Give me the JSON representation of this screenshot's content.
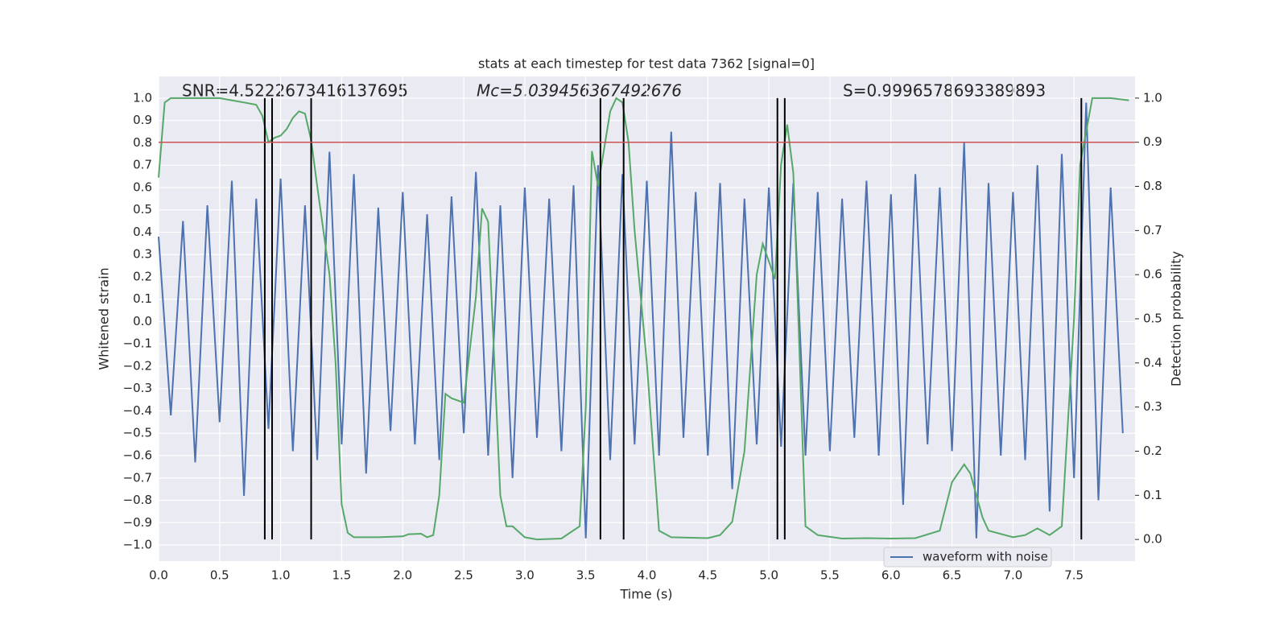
{
  "chart_data": {
    "type": "line",
    "title": "stats at each timestep for test data 7362 [signal=0]",
    "xlabel": "Time (s)",
    "ylabel": "Whitened strain",
    "y2label": "Detection probability",
    "annotations": [
      "SNR=4.5222673416137695",
      "Mc=5.039456367492676",
      "S=0.9996578693389893"
    ],
    "xlim": [
      0,
      8.0
    ],
    "ylim": [
      -1.072,
      1.097
    ],
    "y2lim": [
      -0.049,
      1.049
    ],
    "grid": true,
    "legend": "lower right",
    "xticks": [
      {
        "value": 0,
        "label": "0.0"
      },
      {
        "value": 0.5,
        "label": "0.5"
      },
      {
        "value": 1,
        "label": "1.0"
      },
      {
        "value": 1.5,
        "label": "1.5"
      },
      {
        "value": 2,
        "label": "2.0"
      },
      {
        "value": 2.5,
        "label": "2.5"
      },
      {
        "value": 3,
        "label": "3.0"
      },
      {
        "value": 3.5,
        "label": "3.5"
      },
      {
        "value": 4,
        "label": "4.0"
      },
      {
        "value": 4.5,
        "label": "4.5"
      },
      {
        "value": 5,
        "label": "5.0"
      },
      {
        "value": 5.5,
        "label": "5.5"
      },
      {
        "value": 6,
        "label": "6.0"
      },
      {
        "value": 6.5,
        "label": "6.5"
      },
      {
        "value": 7,
        "label": "7.0"
      },
      {
        "value": 7.5,
        "label": "7.5"
      }
    ],
    "yticks": [
      {
        "value": -1,
        "label": "−1.0"
      },
      {
        "value": -0.9,
        "label": "−0.9"
      },
      {
        "value": -0.8,
        "label": "−0.8"
      },
      {
        "value": -0.7,
        "label": "−0.7"
      },
      {
        "value": -0.6,
        "label": "−0.6"
      },
      {
        "value": -0.5,
        "label": "−0.5"
      },
      {
        "value": -0.4,
        "label": "−0.4"
      },
      {
        "value": -0.3,
        "label": "−0.3"
      },
      {
        "value": -0.2,
        "label": "−0.2"
      },
      {
        "value": -0.1,
        "label": "−0.1"
      },
      {
        "value": 0,
        "label": "0.0"
      },
      {
        "value": 0.1,
        "label": "0.1"
      },
      {
        "value": 0.2,
        "label": "0.2"
      },
      {
        "value": 0.3,
        "label": "0.3"
      },
      {
        "value": 0.4,
        "label": "0.4"
      },
      {
        "value": 0.5,
        "label": "0.5"
      },
      {
        "value": 0.6,
        "label": "0.6"
      },
      {
        "value": 0.7,
        "label": "0.7"
      },
      {
        "value": 0.8,
        "label": "0.8"
      },
      {
        "value": 0.9,
        "label": "0.9"
      },
      {
        "value": 1,
        "label": "1.0"
      }
    ],
    "y2ticks": [
      {
        "value": 0,
        "label": "0.0"
      },
      {
        "value": 0.1,
        "label": "0.1"
      },
      {
        "value": 0.2,
        "label": "0.2"
      },
      {
        "value": 0.3,
        "label": "0.3"
      },
      {
        "value": 0.4,
        "label": "0.4"
      },
      {
        "value": 0.5,
        "label": "0.5"
      },
      {
        "value": 0.6,
        "label": "0.6"
      },
      {
        "value": 0.7,
        "label": "0.7"
      },
      {
        "value": 0.8,
        "label": "0.8"
      },
      {
        "value": 0.9,
        "label": "0.9"
      },
      {
        "value": 1,
        "label": "1.0"
      }
    ],
    "series": [
      {
        "name": "waveform with noise",
        "color": "#4c72b0",
        "x": [
          0,
          0.1,
          0.2,
          0.3,
          0.4,
          0.5,
          0.6,
          0.7,
          0.8,
          0.9,
          1,
          1.1,
          1.2,
          1.3,
          1.4,
          1.5,
          1.6,
          1.7,
          1.8,
          1.9,
          2,
          2.1,
          2.2,
          2.3,
          2.4,
          2.5,
          2.6,
          2.7,
          2.8,
          2.9,
          3,
          3.1,
          3.2,
          3.3,
          3.4,
          3.5,
          3.6,
          3.7,
          3.8,
          3.9,
          4,
          4.1,
          4.2,
          4.3,
          4.4,
          4.5,
          4.6,
          4.7,
          4.8,
          4.9,
          5,
          5.1,
          5.2,
          5.3,
          5.4,
          5.5,
          5.6,
          5.7,
          5.8,
          5.9,
          6,
          6.1,
          6.2,
          6.3,
          6.4,
          6.5,
          6.6,
          6.7,
          6.8,
          6.9,
          7,
          7.1,
          7.2,
          7.3,
          7.4,
          7.5,
          7.6,
          7.7,
          7.8,
          7.9
        ],
        "values": [
          0.38,
          -0.42,
          0.45,
          -0.63,
          0.52,
          -0.45,
          0.63,
          -0.78,
          0.55,
          -0.48,
          0.64,
          -0.58,
          0.52,
          -0.62,
          0.76,
          -0.55,
          0.66,
          -0.68,
          0.51,
          -0.49,
          0.58,
          -0.55,
          0.48,
          -0.62,
          0.56,
          -0.5,
          0.67,
          -0.6,
          0.52,
          -0.7,
          0.6,
          -0.52,
          0.55,
          -0.58,
          0.61,
          -0.97,
          0.7,
          -0.62,
          0.66,
          -0.55,
          0.63,
          -0.6,
          0.85,
          -0.52,
          0.58,
          -0.6,
          0.62,
          -0.75,
          0.55,
          -0.55,
          0.6,
          -0.56,
          0.62,
          -0.6,
          0.58,
          -0.58,
          0.55,
          -0.52,
          0.63,
          -0.6,
          0.57,
          -0.82,
          0.66,
          -0.55,
          0.6,
          -0.58,
          0.8,
          -0.97,
          0.62,
          -0.6,
          0.58,
          -0.62,
          0.7,
          -0.85,
          0.75,
          -0.7,
          0.98,
          -0.8,
          0.6,
          -0.5
        ]
      },
      {
        "color": "#55a868",
        "axis": "y2",
        "x": [
          0,
          0.05,
          0.1,
          0.2,
          0.3,
          0.4,
          0.5,
          0.6,
          0.7,
          0.8,
          0.85,
          0.9,
          0.95,
          1,
          1.05,
          1.1,
          1.15,
          1.2,
          1.25,
          1.3,
          1.4,
          1.45,
          1.5,
          1.55,
          1.6,
          1.8,
          2,
          2.05,
          2.15,
          2.2,
          2.25,
          2.3,
          2.35,
          2.4,
          2.5,
          2.6,
          2.65,
          2.7,
          2.8,
          2.85,
          2.9,
          3,
          3.1,
          3.3,
          3.45,
          3.5,
          3.55,
          3.6,
          3.7,
          3.75,
          3.8,
          3.85,
          3.9,
          4,
          4.1,
          4.2,
          4.5,
          4.6,
          4.7,
          4.8,
          4.9,
          4.95,
          5.05,
          5.1,
          5.15,
          5.2,
          5.3,
          5.4,
          5.6,
          5.8,
          6,
          6.2,
          6.4,
          6.5,
          6.6,
          6.65,
          6.75,
          6.8,
          7,
          7.1,
          7.2,
          7.3,
          7.4,
          7.5,
          7.55,
          7.65,
          7.8,
          7.95
        ],
        "values": [
          0.82,
          0.99,
          1,
          1,
          1,
          1,
          1,
          0.995,
          0.99,
          0.985,
          0.96,
          0.9,
          0.91,
          0.915,
          0.93,
          0.955,
          0.97,
          0.965,
          0.905,
          0.8,
          0.6,
          0.4,
          0.08,
          0.015,
          0.005,
          0.005,
          0.007,
          0.012,
          0.013,
          0.005,
          0.01,
          0.1,
          0.33,
          0.32,
          0.31,
          0.55,
          0.75,
          0.72,
          0.1,
          0.03,
          0.03,
          0.005,
          0,
          0.002,
          0.03,
          0.3,
          0.88,
          0.8,
          0.97,
          1,
          0.99,
          0.9,
          0.7,
          0.4,
          0.02,
          0.005,
          0.003,
          0.01,
          0.04,
          0.2,
          0.6,
          0.67,
          0.59,
          0.85,
          0.94,
          0.83,
          0.03,
          0.01,
          0.002,
          0.003,
          0.002,
          0.003,
          0.02,
          0.13,
          0.17,
          0.15,
          0.05,
          0.02,
          0.005,
          0.01,
          0.025,
          0.01,
          0.03,
          0.5,
          0.85,
          1,
          1,
          0.995
        ]
      }
    ],
    "vlines": [
      0.87,
      0.93,
      1.25,
      3.62,
      3.81,
      5.07,
      5.13,
      7.56
    ],
    "vline_span_y2": [
      0,
      1
    ],
    "hline_y2": 0.9
  }
}
